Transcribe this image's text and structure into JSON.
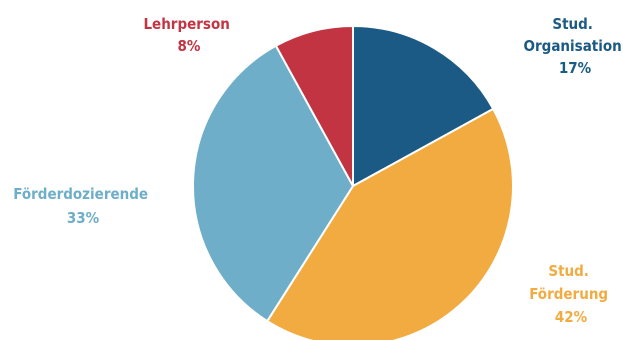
{
  "chart_data": {
    "type": "pie",
    "title": "",
    "legend": "none",
    "slices": [
      {
        "lines": [
          "Stud.",
          "Organisation"
        ],
        "percent_label": "17%",
        "value": 17,
        "color": "#1b5a84"
      },
      {
        "lines": [
          "Stud.",
          "Förderung"
        ],
        "percent_label": "42%",
        "value": 42,
        "color": "#f2ab40"
      },
      {
        "lines": [
          "Förderdozierende"
        ],
        "percent_label": "33%",
        "value": 33,
        "color": "#6eaec9"
      },
      {
        "lines": [
          "Lehrperson"
        ],
        "percent_label": "8%",
        "value": 8,
        "color": "#c33443"
      }
    ]
  }
}
